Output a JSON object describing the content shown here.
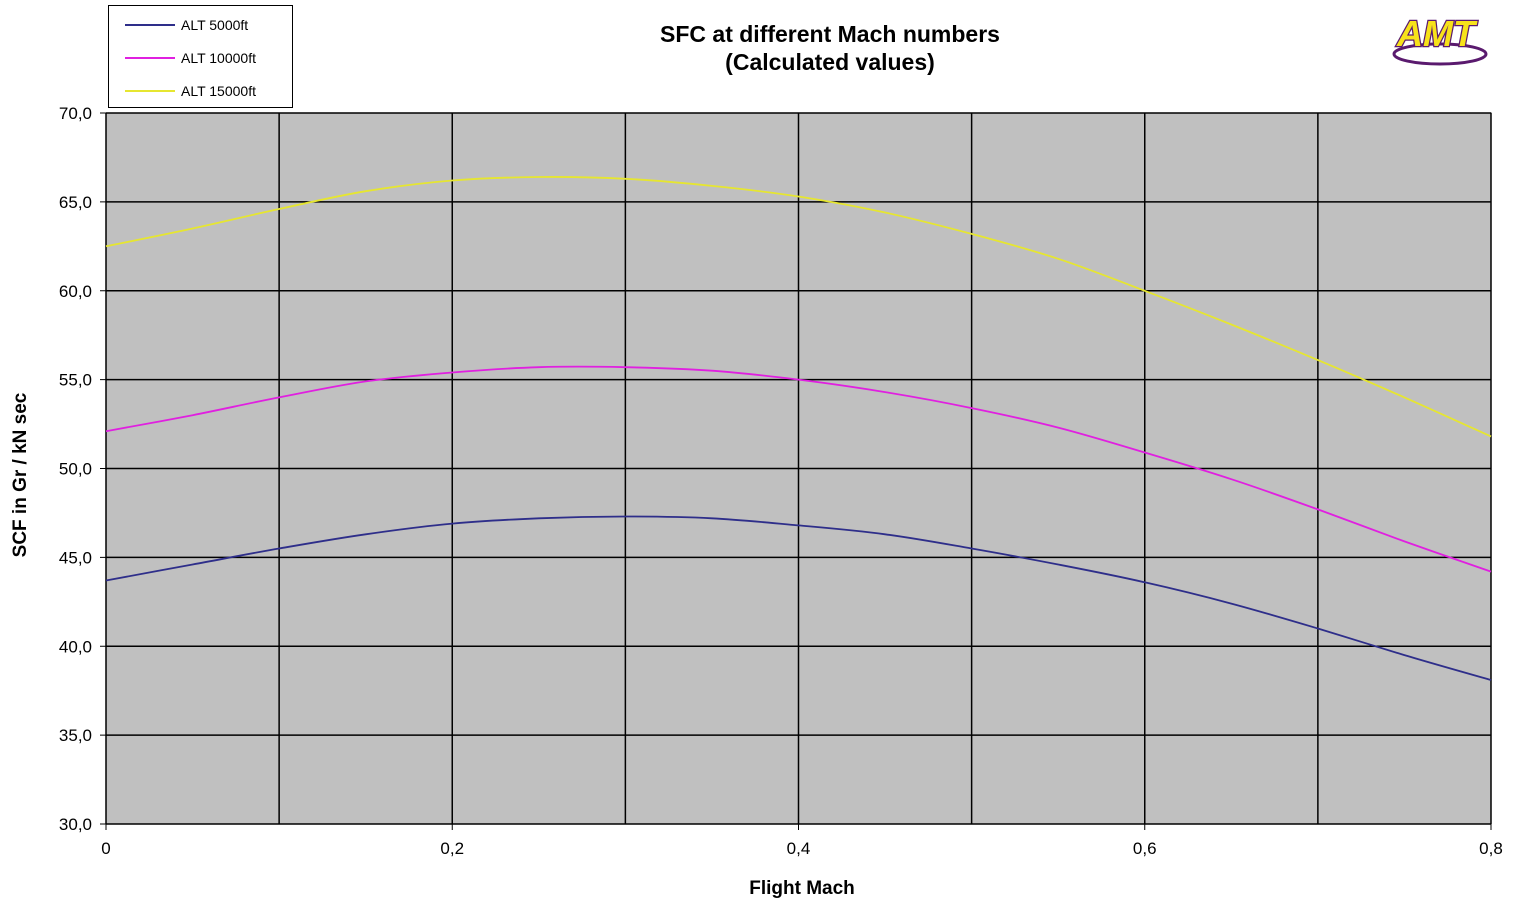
{
  "chart_data": {
    "type": "line",
    "title_line1": "SFC at different Mach numbers",
    "title_line2": "(Calculated values)",
    "xlabel": "Flight Mach",
    "ylabel": "SCF in Gr / kN sec",
    "xlim": [
      0,
      0.8
    ],
    "ylim": [
      30,
      70
    ],
    "x_ticks": [
      0,
      0.2,
      0.4,
      0.6,
      0.8
    ],
    "x_tick_labels": [
      "0",
      "0,2",
      "0,4",
      "0,6",
      "0,8"
    ],
    "x_grid": [
      0,
      0.1,
      0.2,
      0.3,
      0.4,
      0.5,
      0.6,
      0.7,
      0.8
    ],
    "y_ticks": [
      30,
      35,
      40,
      45,
      50,
      55,
      60,
      65,
      70
    ],
    "y_tick_labels": [
      "30,0",
      "35,0",
      "40,0",
      "45,0",
      "50,0",
      "55,0",
      "60,0",
      "65,0",
      "70,0"
    ],
    "grid": true,
    "plot_background": "#c0c0c0",
    "legend_position": "top-left",
    "series": [
      {
        "name": "ALT 5000ft",
        "color": "#2e2e8a",
        "x": [
          0,
          0.05,
          0.1,
          0.15,
          0.2,
          0.25,
          0.3,
          0.35,
          0.4,
          0.45,
          0.5,
          0.55,
          0.6,
          0.65,
          0.7,
          0.75,
          0.8
        ],
        "y": [
          43.7,
          44.6,
          45.5,
          46.3,
          46.9,
          47.2,
          47.3,
          47.2,
          46.8,
          46.3,
          45.5,
          44.6,
          43.6,
          42.4,
          41.0,
          39.5,
          38.1
        ]
      },
      {
        "name": "ALT 10000ft",
        "color": "#e020e0",
        "x": [
          0,
          0.05,
          0.1,
          0.15,
          0.2,
          0.25,
          0.3,
          0.35,
          0.4,
          0.45,
          0.5,
          0.55,
          0.6,
          0.65,
          0.7,
          0.75,
          0.8
        ],
        "y": [
          52.1,
          53.0,
          54.0,
          54.9,
          55.4,
          55.7,
          55.7,
          55.5,
          55.0,
          54.3,
          53.4,
          52.3,
          50.9,
          49.4,
          47.7,
          45.9,
          44.2
        ]
      },
      {
        "name": "ALT 15000ft",
        "color": "#e6e630",
        "x": [
          0,
          0.05,
          0.1,
          0.15,
          0.2,
          0.25,
          0.3,
          0.35,
          0.4,
          0.45,
          0.5,
          0.55,
          0.6,
          0.65,
          0.7,
          0.75,
          0.8
        ],
        "y": [
          62.5,
          63.5,
          64.6,
          65.6,
          66.2,
          66.4,
          66.3,
          65.9,
          65.3,
          64.4,
          63.2,
          61.8,
          60.0,
          58.1,
          56.1,
          54.0,
          51.8
        ]
      }
    ]
  },
  "logo": {
    "text": "AMT",
    "colors": {
      "fill": "#f7e21a",
      "outline": "#5a1a6e"
    }
  }
}
